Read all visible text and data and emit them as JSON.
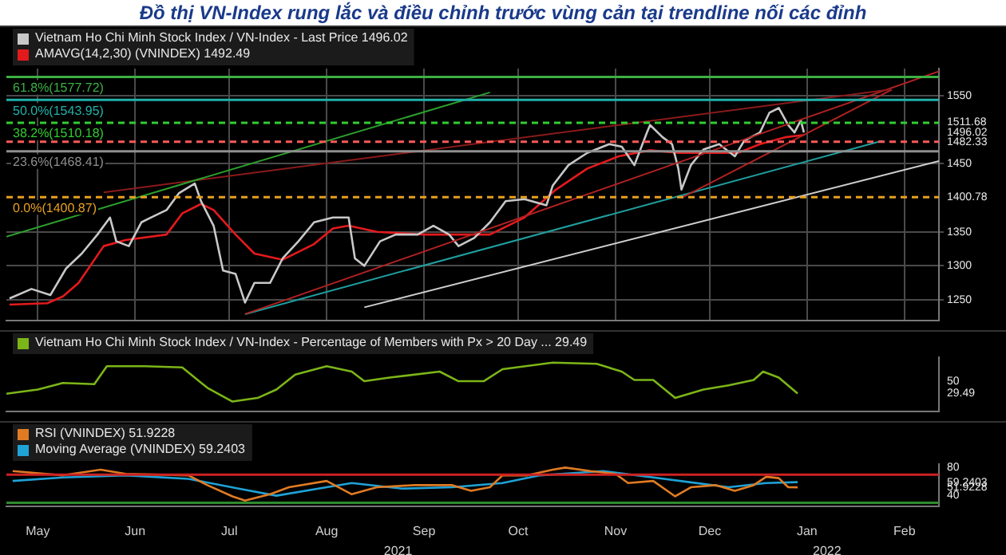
{
  "chart_data": [
    {
      "type": "line",
      "title": "Đồ thị VN-Index rung lắc và điều chỉnh trước vùng cản tại trendline nối các đỉnh",
      "legend": "top left",
      "grid": true,
      "tick_labels": "y",
      "xlim": [
        "2021-05-05",
        "2022-02-26"
      ],
      "xticks": [
        {
          "value": "2021-05-15",
          "label": null
        },
        {
          "value": "2021-06-15",
          "label": null
        },
        {
          "value": "2021-07-15",
          "label": null
        },
        {
          "value": "2021-08-15",
          "label": null
        },
        {
          "value": "2021-09-15",
          "label": null
        },
        {
          "value": "2021-10-15",
          "label": null
        },
        {
          "value": "2021-11-15",
          "label": null
        },
        {
          "value": "2021-12-15",
          "label": null
        },
        {
          "value": "2022-01-15",
          "label": null
        },
        {
          "value": "2022-02-15",
          "label": null
        }
      ],
      "ylim": [
        1220,
        1590
      ],
      "yticks": [
        1250,
        1300,
        1350,
        1450,
        1550,
        {
          "value": 1511.68,
          "label": "1511.68"
        },
        {
          "value": 1496.02,
          "label": "1496.02"
        },
        {
          "value": 1482.33,
          "label": "1482.33"
        },
        {
          "value": 1400.78,
          "label": "1400.78"
        }
      ],
      "ref_lines": [
        {
          "axis": "y",
          "value": 1577.72,
          "label": "61.8%(1577.72)",
          "color": "#3cb043"
        },
        {
          "axis": "y",
          "value": 1543.95,
          "label": "50.0%(1543.95)",
          "color": "#20b2aa"
        },
        {
          "axis": "y",
          "value": 1510.18,
          "label": "38.2%(1510.18)",
          "color": "#32cd32",
          "line_style": "dashed"
        },
        {
          "axis": "y",
          "value": 1482.33,
          "color": "#ff5a5a",
          "line_style": "dashed"
        },
        {
          "axis": "y",
          "value": 1468.41,
          "label": "23.6%(1468.41)",
          "color": "#8f8f8f"
        },
        {
          "axis": "y",
          "value": 1400.87,
          "label": "0.0%(1400.87)",
          "color": "#e8a020",
          "line_style": "dashed"
        }
      ],
      "series": [
        {
          "color": "#2ca02c",
          "x": [
            "2021-05-05",
            "2021-10-06"
          ],
          "values": [
            1343,
            1555
          ]
        },
        {
          "color": "#8b1a1a",
          "x": [
            "2021-06-05",
            "2022-02-10"
          ],
          "values": [
            1408,
            1559
          ]
        },
        {
          "color": "#b22222",
          "x": [
            "2021-07-20",
            "2022-02-26"
          ],
          "values": [
            1229,
            1586
          ]
        },
        {
          "color": "#b22222",
          "x": [
            "2021-12-06",
            "2022-02-11"
          ],
          "values": [
            1400,
            1559
          ]
        },
        {
          "color": "#1f9e9e",
          "x": [
            "2021-07-20",
            "2022-02-08"
          ],
          "values": [
            1229,
            1484
          ]
        },
        {
          "color": "#d0d0d0",
          "x": [
            "2021-08-27",
            "2022-02-26"
          ],
          "values": [
            1239,
            1454
          ]
        },
        {
          "name": "Vietnam Ho Chi Minh Stock Index / VN-Index - Last Price 1496.02",
          "color": "#c8c8c8",
          "x": [
            "2021-05-06",
            "2021-05-13",
            "2021-05-19",
            "2021-05-24",
            "2021-05-29",
            "2021-06-03",
            "2021-06-07",
            "2021-06-09",
            "2021-06-13",
            "2021-06-17",
            "2021-06-20",
            "2021-06-25",
            "2021-06-29",
            "2021-07-04",
            "2021-07-06",
            "2021-07-10",
            "2021-07-13",
            "2021-07-17",
            "2021-07-20",
            "2021-07-23",
            "2021-07-28",
            "2021-08-01",
            "2021-08-06",
            "2021-08-11",
            "2021-08-17",
            "2021-08-22",
            "2021-08-24",
            "2021-08-27",
            "2021-09-01",
            "2021-09-06",
            "2021-09-13",
            "2021-09-18",
            "2021-09-23",
            "2021-09-26",
            "2021-10-01",
            "2021-10-06",
            "2021-10-11",
            "2021-10-17",
            "2021-10-24",
            "2021-10-26",
            "2021-10-31",
            "2021-11-06",
            "2021-11-13",
            "2021-11-17",
            "2021-11-21",
            "2021-11-25",
            "2021-11-26",
            "2021-11-30",
            "2021-12-03",
            "2021-12-05",
            "2021-12-06",
            "2021-12-09",
            "2021-12-13",
            "2021-12-18",
            "2021-12-23",
            "2021-12-26",
            "2021-12-31",
            "2022-01-03",
            "2022-01-06",
            "2022-01-09",
            "2022-01-11",
            "2022-01-13",
            "2022-01-14"
          ],
          "values": [
            1252,
            1266,
            1257,
            1296,
            1318,
            1346,
            1371,
            1336,
            1329,
            1364,
            1371,
            1382,
            1407,
            1421,
            1395,
            1359,
            1293,
            1288,
            1246,
            1275,
            1275,
            1311,
            1336,
            1364,
            1371,
            1371,
            1311,
            1300,
            1336,
            1346,
            1346,
            1359,
            1346,
            1329,
            1341,
            1364,
            1395,
            1398,
            1389,
            1418,
            1448,
            1466,
            1479,
            1475,
            1448,
            1496,
            1507,
            1489,
            1479,
            1443,
            1412,
            1448,
            1471,
            1479,
            1461,
            1484,
            1496,
            1525,
            1532,
            1507,
            1496,
            1514,
            1496.02
          ]
        },
        {
          "name": "AMAVG(14,2,30) (VNINDEX) 1492.49",
          "color": "#e31a1c",
          "x": [
            "2021-05-06",
            "2021-05-18",
            "2021-05-23",
            "2021-05-28",
            "2021-06-05",
            "2021-06-12",
            "2021-06-25",
            "2021-06-30",
            "2021-07-06",
            "2021-07-10",
            "2021-07-17",
            "2021-07-23",
            "2021-08-01",
            "2021-08-11",
            "2021-08-17",
            "2021-08-22",
            "2021-08-31",
            "2021-09-15",
            "2021-10-06",
            "2021-10-17",
            "2021-10-27",
            "2021-11-06",
            "2021-11-16",
            "2021-11-26",
            "2021-12-05",
            "2021-12-14",
            "2021-12-24",
            "2021-12-31",
            "2022-01-08",
            "2022-01-14"
          ],
          "values": [
            1243,
            1245,
            1255,
            1275,
            1329,
            1338,
            1346,
            1377,
            1391,
            1382,
            1346,
            1318,
            1309,
            1332,
            1355,
            1359,
            1350,
            1346,
            1346,
            1371,
            1412,
            1443,
            1461,
            1470,
            1466,
            1466,
            1466,
            1479,
            1489,
            1492.49
          ]
        }
      ]
    },
    {
      "type": "line",
      "legend": "top left",
      "tick_labels": "y",
      "xlim": [
        "2021-05-05",
        "2022-02-26"
      ],
      "xticks": [
        {
          "value": "2021-05-15",
          "label": null
        },
        {
          "value": "2021-06-15",
          "label": null
        },
        {
          "value": "2021-07-15",
          "label": null
        },
        {
          "value": "2021-08-15",
          "label": null
        },
        {
          "value": "2021-09-15",
          "label": null
        },
        {
          "value": "2021-10-15",
          "label": null
        },
        {
          "value": "2021-11-15",
          "label": null
        },
        {
          "value": "2021-12-15",
          "label": null
        },
        {
          "value": "2022-01-15",
          "label": null
        },
        {
          "value": "2022-02-15",
          "label": null
        }
      ],
      "ylim": [
        0,
        90
      ],
      "yticks": [
        50,
        {
          "value": 29.49,
          "label": "29.49"
        }
      ],
      "series": [
        {
          "name": "Vietnam Ho Chi Minh Stock Index / VN-Index - Percentage of Members with Px > 20 Day ... 29.49",
          "color": "#7cb518",
          "x": [
            "2021-05-05",
            "2021-05-15",
            "2021-05-23",
            "2021-06-02",
            "2021-06-06",
            "2021-06-18",
            "2021-06-30",
            "2021-07-08",
            "2021-07-16",
            "2021-07-24",
            "2021-07-30",
            "2021-08-05",
            "2021-08-15",
            "2021-08-23",
            "2021-08-27",
            "2021-09-04",
            "2021-09-20",
            "2021-09-26",
            "2021-10-04",
            "2021-10-10",
            "2021-10-26",
            "2021-11-09",
            "2021-11-17",
            "2021-11-21",
            "2021-11-27",
            "2021-12-04",
            "2021-12-13",
            "2021-12-21",
            "2021-12-29",
            "2022-01-01",
            "2022-01-06",
            "2022-01-12"
          ],
          "values": [
            29,
            36,
            47,
            45,
            75,
            75,
            73,
            39,
            16,
            22,
            36,
            61,
            75,
            66,
            50,
            56,
            66,
            50,
            50,
            70,
            81,
            79,
            66,
            52,
            52,
            22,
            36,
            43,
            52,
            66,
            56,
            29.49
          ]
        }
      ]
    },
    {
      "type": "line",
      "legend": "top left",
      "annotations": [
        "2021",
        "2022"
      ],
      "xlim": [
        "2021-05-05",
        "2022-02-26"
      ],
      "xticks": [
        {
          "value": "2021-05-15",
          "label": "May"
        },
        {
          "value": "2021-06-15",
          "label": "Jun"
        },
        {
          "value": "2021-07-15",
          "label": "Jul"
        },
        {
          "value": "2021-08-15",
          "label": "Aug"
        },
        {
          "value": "2021-09-15",
          "label": "Sep"
        },
        {
          "value": "2021-10-15",
          "label": "Oct"
        },
        {
          "value": "2021-11-15",
          "label": "Nov"
        },
        {
          "value": "2021-12-15",
          "label": "Dec"
        },
        {
          "value": "2022-01-15",
          "label": "Jan"
        },
        {
          "value": "2022-02-15",
          "label": "Feb"
        }
      ],
      "ylim": [
        25,
        85
      ],
      "yticks": [
        40,
        80,
        {
          "value": 59.2403,
          "label": "59.2403"
        },
        {
          "value": 51.9228,
          "label": "51.9228"
        }
      ],
      "ref_lines": [
        {
          "axis": "y",
          "value": 70,
          "color": "#cc2222"
        },
        {
          "axis": "y",
          "value": 30,
          "color": "#2e8b2e"
        }
      ],
      "series": [
        {
          "name": "RSI (VNINDEX) 51.9228",
          "color": "#e07b24",
          "x": [
            "2021-05-07",
            "2021-05-23",
            "2021-06-04",
            "2021-06-12",
            "2021-07-02",
            "2021-07-08",
            "2021-07-16",
            "2021-07-20",
            "2021-07-28",
            "2021-08-03",
            "2021-08-15",
            "2021-08-23",
            "2021-08-31",
            "2021-09-12",
            "2021-09-24",
            "2021-09-30",
            "2021-10-06",
            "2021-10-10",
            "2021-10-18",
            "2021-10-26",
            "2021-10-30",
            "2021-11-07",
            "2021-11-15",
            "2021-11-19",
            "2021-11-27",
            "2021-12-04",
            "2021-12-09",
            "2021-12-17",
            "2021-12-23",
            "2021-12-29",
            "2022-01-02",
            "2022-01-06",
            "2022-01-09",
            "2022-01-12"
          ],
          "values": [
            75,
            69,
            77,
            71,
            69,
            55,
            39,
            33,
            42,
            52,
            61,
            42,
            52,
            55,
            55,
            47,
            52,
            69,
            69,
            77,
            80,
            75,
            71,
            58,
            61,
            39,
            52,
            55,
            47,
            55,
            67,
            65,
            52,
            51.9228
          ]
        },
        {
          "name": "Moving Average (VNINDEX) 59.2403",
          "color": "#1fa2d6",
          "x": [
            "2021-05-07",
            "2021-05-23",
            "2021-06-12",
            "2021-07-02",
            "2021-07-18",
            "2021-07-30",
            "2021-08-15",
            "2021-08-23",
            "2021-09-08",
            "2021-09-24",
            "2021-10-10",
            "2021-10-22",
            "2021-11-11",
            "2021-11-27",
            "2021-12-09",
            "2021-12-21",
            "2022-01-02",
            "2022-01-12"
          ],
          "values": [
            61,
            66,
            69,
            64,
            50,
            40,
            52,
            58,
            50,
            52,
            58,
            69,
            75,
            66,
            59,
            52,
            58,
            59.2403
          ]
        }
      ]
    }
  ]
}
